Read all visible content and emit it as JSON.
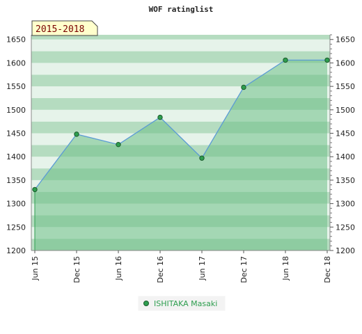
{
  "chart_data": {
    "type": "area",
    "title": "WOF ratinglist",
    "period_label": "2015-2018",
    "x": [
      "Jun 15",
      "Dec 15",
      "Jun 16",
      "Dec 16",
      "Jun 17",
      "Dec 17",
      "Jun 18",
      "Dec 18"
    ],
    "series": [
      {
        "name": "ISHITAKA Masaki",
        "values": [
          1330,
          1448,
          1426,
          1484,
          1397,
          1548,
          1606,
          1606
        ]
      }
    ],
    "ylim": [
      1200,
      1660
    ],
    "yticks": [
      1200,
      1250,
      1300,
      1350,
      1400,
      1450,
      1500,
      1550,
      1600,
      1650
    ],
    "grid": true,
    "legend_position": "bottom-center",
    "colors": {
      "line": "#5b9bd5",
      "marker_fill": "#2e9e4f",
      "area_fill": "#6dbf87",
      "band_dark": "#b5dcc0",
      "band_light": "#e6f3ea",
      "period_badge_bg": "#ffffcc",
      "legend_text": "#2e9e4f"
    }
  }
}
